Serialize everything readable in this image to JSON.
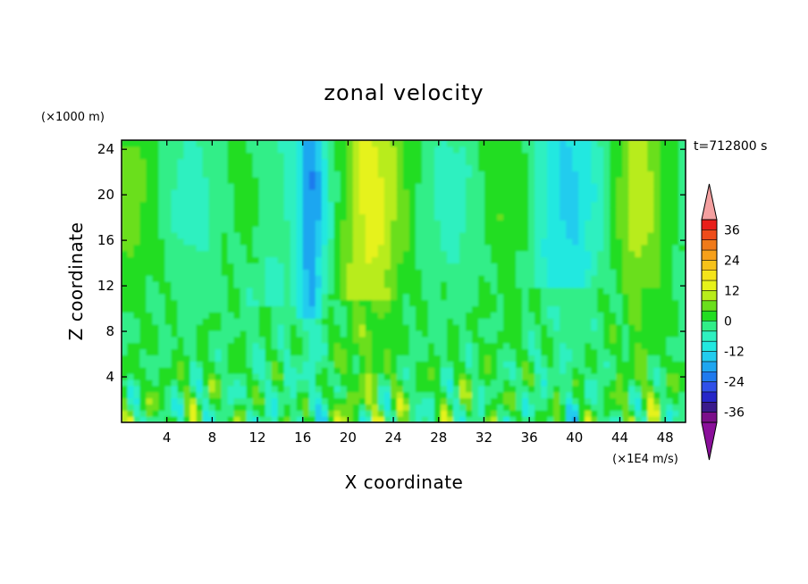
{
  "chart_data": {
    "type": "heatmap",
    "title": "zonal velocity",
    "xlabel": "X coordinate",
    "ylabel": "Z coordinate",
    "y_unit": "(×1000 m)",
    "value_unit": "(×1E4 m/s)",
    "time_label": "t=712800 s",
    "xlim": [
      0,
      49.8
    ],
    "ylim": [
      0,
      24.8
    ],
    "x_ticks": [
      4,
      8,
      12,
      16,
      20,
      24,
      28,
      32,
      36,
      40,
      44,
      48
    ],
    "y_ticks": [
      4,
      8,
      12,
      16,
      20,
      24
    ],
    "colorbar": {
      "levels": [
        -40,
        -36,
        -32,
        -28,
        -24,
        -20,
        -16,
        -12,
        -8,
        -4,
        0,
        4,
        8,
        12,
        16,
        20,
        24,
        28,
        32,
        36,
        40
      ],
      "colors": [
        "#7b0f8a",
        "#3a1a8c",
        "#2626c8",
        "#3050e8",
        "#1f7aee",
        "#1ea6f0",
        "#22ccee",
        "#22e8e0",
        "#2ef0c0",
        "#30ee88",
        "#22dd22",
        "#6adf1c",
        "#b8ec1a",
        "#e6f21a",
        "#f4e41a",
        "#f6c21a",
        "#f6a01a",
        "#f07a1a",
        "#ee4c1a",
        "#e81e1a"
      ],
      "under_color": "#8a0f9a",
      "over_color": "#f4a0a0",
      "tick_labels": [
        "36",
        "24",
        "12",
        "0",
        "-12",
        "-24",
        "-36"
      ]
    },
    "field_description_bands": [
      {
        "x_range": [
          0,
          3
        ],
        "z_range": [
          10,
          24.8
        ],
        "level": 0
      },
      {
        "x_range": [
          16,
          18
        ],
        "z_range": [
          10,
          24.8
        ],
        "level": -16
      },
      {
        "x_range": [
          19,
          24
        ],
        "z_range": [
          12,
          24.8
        ],
        "level": 12
      },
      {
        "x_range": [
          36,
          42
        ],
        "z_range": [
          12,
          24.8
        ],
        "level": -8
      }
    ]
  }
}
